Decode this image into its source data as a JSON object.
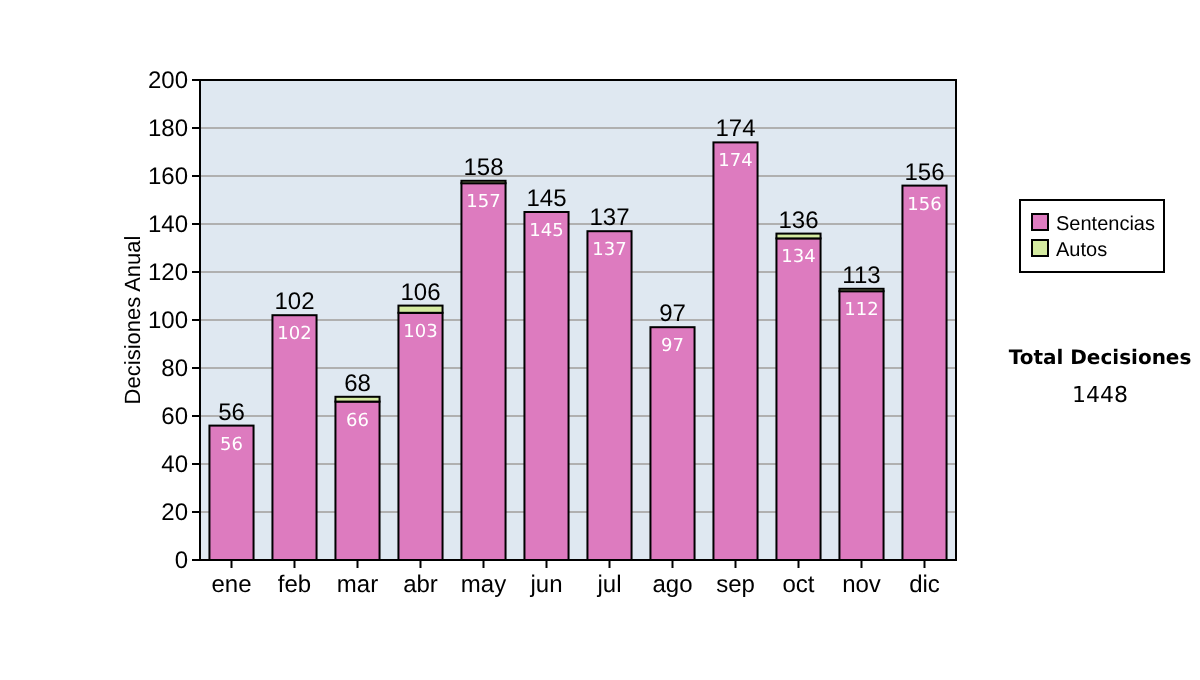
{
  "chart_data": {
    "type": "bar",
    "stacked": true,
    "ylabel": "Decisiones Anual",
    "categories": [
      "ene",
      "feb",
      "mar",
      "abr",
      "may",
      "jun",
      "jul",
      "ago",
      "sep",
      "oct",
      "nov",
      "dic"
    ],
    "series": [
      {
        "name": "Sentencias",
        "color": "#dd7bbf",
        "values": [
          56,
          102,
          66,
          103,
          157,
          145,
          137,
          97,
          174,
          134,
          112,
          156
        ],
        "value_labels": [
          "56",
          "102",
          "66",
          "103",
          "157",
          "145",
          "137",
          "97",
          "174",
          "134",
          "112",
          "156"
        ]
      },
      {
        "name": "Autos",
        "color": "#d4eaa0",
        "values": [
          0,
          0,
          2,
          3,
          1,
          0,
          0,
          0,
          0,
          2,
          1,
          0
        ]
      }
    ],
    "totals": [
      "56",
      "102",
      "68",
      "106",
      "158",
      "145",
      "137",
      "97",
      "174",
      "136",
      "113",
      "156"
    ],
    "ylim": [
      0,
      200
    ],
    "yticks": [
      0,
      20,
      40,
      60,
      80,
      100,
      120,
      140,
      160,
      180,
      200
    ],
    "grid": "y",
    "legend": "right",
    "annotations": [
      "Total Decisiones",
      "1448"
    ]
  }
}
